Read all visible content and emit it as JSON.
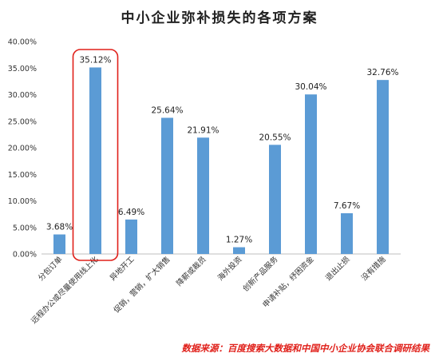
{
  "chart_data": {
    "type": "bar",
    "title": "中小企业弥补损失的各项方案",
    "categories": [
      "分包订单",
      "远程办公或尽量使用线上化",
      "异地开工",
      "促销，营销，扩大销售",
      "降薪或裁员",
      "海外投资",
      "创新产品服务",
      "申请补贴，纾困资金",
      "退出止损",
      "没有措施"
    ],
    "values": [
      3.68,
      35.12,
      6.49,
      25.64,
      21.91,
      1.27,
      20.55,
      30.04,
      7.67,
      32.76
    ],
    "data_labels": [
      "3.68%",
      "35.12%",
      "6.49%",
      "25.64%",
      "21.91%",
      "1.27%",
      "20.55%",
      "30.04%",
      "7.67%",
      "32.76%"
    ],
    "y_ticks": [
      "0.00%",
      "5.00%",
      "10.00%",
      "15.00%",
      "20.00%",
      "25.00%",
      "30.00%",
      "35.00%",
      "40.00%"
    ],
    "ylim": [
      0,
      40
    ],
    "y_tick_step": 5,
    "grid": false,
    "bar_color": "#5b9bd5",
    "highlight_index": 1,
    "highlight_color": "#e0201a",
    "source_note": "数据来源：百度搜索大数据和中国中小企业协会联合调研结果"
  }
}
